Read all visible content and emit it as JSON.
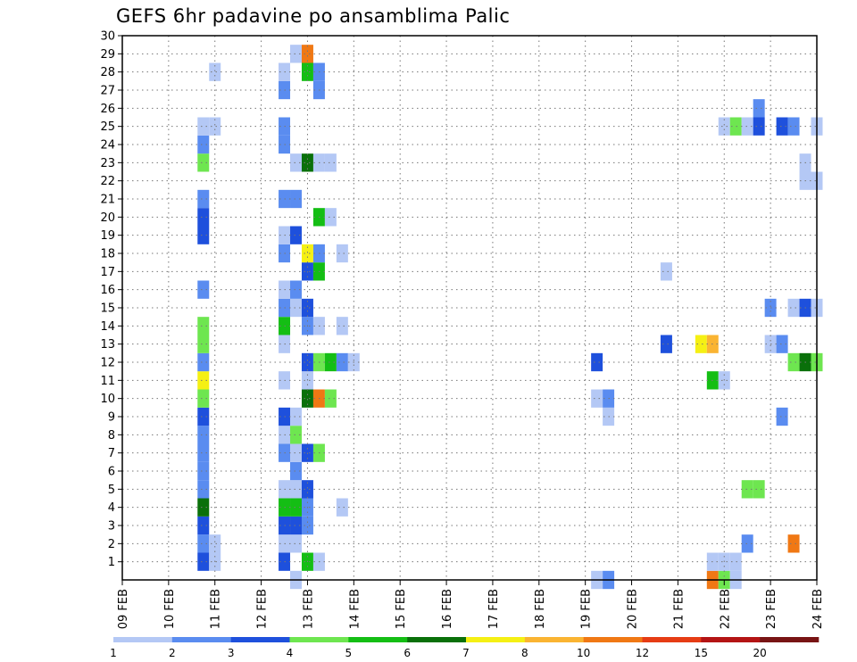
{
  "chart_data": {
    "type": "heatmap",
    "title": "GEFS 6hr padavine po ansamblima Palic",
    "xlabel": "",
    "ylabel": "",
    "x_ticks": [
      "09 FEB",
      "10 FEB",
      "11 FEB",
      "12 FEB",
      "13 FEB",
      "14 FEB",
      "15 FEB",
      "16 FEB",
      "17 FEB",
      "18 FEB",
      "19 FEB",
      "20 FEB",
      "21 FEB",
      "22 FEB",
      "23 FEB",
      "24 FEB"
    ],
    "y_ticks": [
      "1",
      "2",
      "3",
      "4",
      "5",
      "6",
      "7",
      "8",
      "9",
      "10",
      "11",
      "12",
      "13",
      "14",
      "15",
      "16",
      "17",
      "18",
      "19",
      "20",
      "21",
      "22",
      "23",
      "24",
      "25",
      "26",
      "27",
      "28",
      "29",
      "30"
    ],
    "xlim_days": [
      0,
      15
    ],
    "ylim": [
      0,
      30
    ],
    "grid": true,
    "colorbar": {
      "levels": [
        "1",
        "2",
        "3",
        "4",
        "5",
        "6",
        "7",
        "8",
        "10",
        "12",
        "15",
        "20"
      ],
      "colors": [
        "#b4c8f5",
        "#5a8cf0",
        "#1e50dc",
        "#6ee650",
        "#14be14",
        "#0a700a",
        "#f5f014",
        "#fab432",
        "#f07814",
        "#e63c14",
        "#b41414",
        "#781414"
      ]
    },
    "cells": [
      [
        1.75,
        1,
        2
      ],
      [
        1.75,
        2,
        1
      ],
      [
        1.75,
        3,
        2
      ],
      [
        1.75,
        4,
        5
      ],
      [
        1.75,
        5,
        1
      ],
      [
        1.75,
        6,
        1
      ],
      [
        1.75,
        7,
        1
      ],
      [
        1.75,
        8,
        1
      ],
      [
        1.75,
        9,
        2
      ],
      [
        1.75,
        10,
        3
      ],
      [
        1.75,
        11,
        6
      ],
      [
        1.75,
        12,
        1
      ],
      [
        1.75,
        13,
        3
      ],
      [
        1.75,
        14,
        3
      ],
      [
        1.75,
        16,
        1
      ],
      [
        1.75,
        19,
        2
      ],
      [
        1.75,
        20,
        2
      ],
      [
        1.75,
        21,
        1
      ],
      [
        1.75,
        23,
        3
      ],
      [
        1.75,
        24,
        1
      ],
      [
        1.75,
        25,
        0
      ],
      [
        2,
        1,
        0
      ],
      [
        2,
        2,
        0
      ],
      [
        2,
        25,
        0
      ],
      [
        2,
        28,
        0
      ],
      [
        3.5,
        1,
        2
      ],
      [
        3.5,
        2,
        0
      ],
      [
        3.5,
        3,
        2
      ],
      [
        3.5,
        4,
        4
      ],
      [
        3.5,
        5,
        0
      ],
      [
        3.5,
        7,
        1
      ],
      [
        3.5,
        8,
        0
      ],
      [
        3.5,
        9,
        2
      ],
      [
        3.5,
        11,
        0
      ],
      [
        3.5,
        13,
        0
      ],
      [
        3.5,
        14,
        4
      ],
      [
        3.5,
        15,
        1
      ],
      [
        3.5,
        16,
        0
      ],
      [
        3.5,
        18,
        1
      ],
      [
        3.5,
        19,
        0
      ],
      [
        3.5,
        21,
        1
      ],
      [
        3.5,
        24,
        1
      ],
      [
        3.5,
        25,
        1
      ],
      [
        3.5,
        27,
        1
      ],
      [
        3.5,
        28,
        0
      ],
      [
        3.75,
        0,
        0
      ],
      [
        3.75,
        2,
        0
      ],
      [
        3.75,
        3,
        2
      ],
      [
        3.75,
        4,
        4
      ],
      [
        3.75,
        5,
        0
      ],
      [
        3.75,
        6,
        1
      ],
      [
        3.75,
        7,
        0
      ],
      [
        3.75,
        8,
        3
      ],
      [
        3.75,
        9,
        0
      ],
      [
        3.75,
        15,
        0
      ],
      [
        3.75,
        16,
        1
      ],
      [
        3.75,
        19,
        2
      ],
      [
        3.75,
        21,
        1
      ],
      [
        3.75,
        23,
        0
      ],
      [
        3.75,
        29,
        0
      ],
      [
        4,
        1,
        4
      ],
      [
        4,
        3,
        1
      ],
      [
        4,
        4,
        1
      ],
      [
        4,
        5,
        2
      ],
      [
        4,
        7,
        2
      ],
      [
        4,
        10,
        5
      ],
      [
        4,
        11,
        0
      ],
      [
        4,
        12,
        2
      ],
      [
        4,
        14,
        1
      ],
      [
        4,
        15,
        2
      ],
      [
        4,
        17,
        2
      ],
      [
        4,
        18,
        6
      ],
      [
        4,
        23,
        5
      ],
      [
        4,
        28,
        4
      ],
      [
        4,
        29,
        8
      ],
      [
        4.25,
        1,
        0
      ],
      [
        4.25,
        7,
        3
      ],
      [
        4.25,
        10,
        8
      ],
      [
        4.25,
        12,
        3
      ],
      [
        4.25,
        14,
        0
      ],
      [
        4.25,
        17,
        4
      ],
      [
        4.25,
        18,
        1
      ],
      [
        4.25,
        20,
        4
      ],
      [
        4.25,
        23,
        0
      ],
      [
        4.25,
        27,
        1
      ],
      [
        4.25,
        28,
        1
      ],
      [
        4.5,
        10,
        3
      ],
      [
        4.5,
        12,
        4
      ],
      [
        4.5,
        20,
        0
      ],
      [
        4.5,
        23,
        0
      ],
      [
        4.75,
        4,
        0
      ],
      [
        4.75,
        12,
        1
      ],
      [
        4.75,
        14,
        0
      ],
      [
        4.75,
        18,
        0
      ],
      [
        5,
        12,
        0
      ],
      [
        10.25,
        0,
        0
      ],
      [
        10.25,
        10,
        0
      ],
      [
        10.25,
        12,
        2
      ],
      [
        10.5,
        0,
        1
      ],
      [
        10.5,
        9,
        0
      ],
      [
        10.5,
        10,
        1
      ],
      [
        11.75,
        13,
        2
      ],
      [
        11.75,
        17,
        0
      ],
      [
        12.5,
        13,
        6
      ],
      [
        12.75,
        0,
        8
      ],
      [
        12.75,
        1,
        0
      ],
      [
        12.75,
        11,
        4
      ],
      [
        12.75,
        13,
        7
      ],
      [
        13,
        0,
        3
      ],
      [
        13,
        1,
        0
      ],
      [
        13,
        11,
        0
      ],
      [
        13,
        25,
        0
      ],
      [
        13.25,
        0,
        0
      ],
      [
        13.25,
        1,
        0
      ],
      [
        13.25,
        25,
        3
      ],
      [
        13.5,
        2,
        1
      ],
      [
        13.5,
        5,
        3
      ],
      [
        13.5,
        25,
        0
      ],
      [
        13.75,
        5,
        3
      ],
      [
        13.75,
        25,
        2
      ],
      [
        13.75,
        26,
        1
      ],
      [
        14,
        13,
        0
      ],
      [
        14,
        15,
        1
      ],
      [
        14.25,
        9,
        1
      ],
      [
        14.25,
        13,
        1
      ],
      [
        14.25,
        25,
        2
      ],
      [
        14.5,
        2,
        8
      ],
      [
        14.5,
        12,
        3
      ],
      [
        14.5,
        15,
        0
      ],
      [
        14.5,
        25,
        1
      ],
      [
        14.75,
        12,
        5
      ],
      [
        14.75,
        15,
        2
      ],
      [
        14.75,
        22,
        0
      ],
      [
        14.75,
        23,
        0
      ],
      [
        15,
        12,
        3
      ],
      [
        15,
        15,
        0
      ],
      [
        15,
        22,
        0
      ],
      [
        15,
        25,
        0
      ]
    ]
  }
}
